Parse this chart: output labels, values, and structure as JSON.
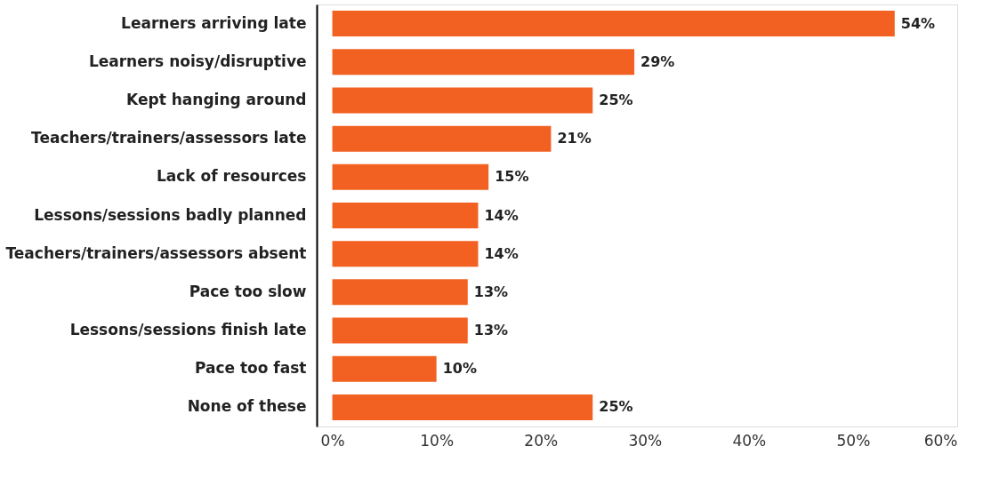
{
  "chart_data": {
    "type": "bar",
    "orientation": "horizontal",
    "categories": [
      "Learners arriving late",
      "Learners noisy/disruptive",
      "Kept hanging around",
      "Teachers/trainers/assessors late",
      "Lack of resources",
      "Lessons/sessions badly planned",
      "Teachers/trainers/assessors absent",
      "Pace too slow",
      "Lessons/sessions finish late",
      "Pace too fast",
      "None of these"
    ],
    "values": [
      54,
      29,
      25,
      21,
      15,
      14,
      14,
      13,
      13,
      10,
      25
    ],
    "value_labels": [
      "54%",
      "29%",
      "25%",
      "21%",
      "15%",
      "14%",
      "14%",
      "13%",
      "13%",
      "10%",
      "25%"
    ],
    "color": "#f26122",
    "xlim": [
      -1.5,
      60
    ],
    "xticks": [
      {
        "value": 0,
        "label": "0%"
      },
      {
        "value": 10,
        "label": "10%"
      },
      {
        "value": 20,
        "label": "20%"
      },
      {
        "value": 30,
        "label": "30%"
      },
      {
        "value": 40,
        "label": "40%"
      },
      {
        "value": 50,
        "label": "50%"
      },
      {
        "value": 60,
        "label": "60%"
      }
    ],
    "grid": false
  }
}
